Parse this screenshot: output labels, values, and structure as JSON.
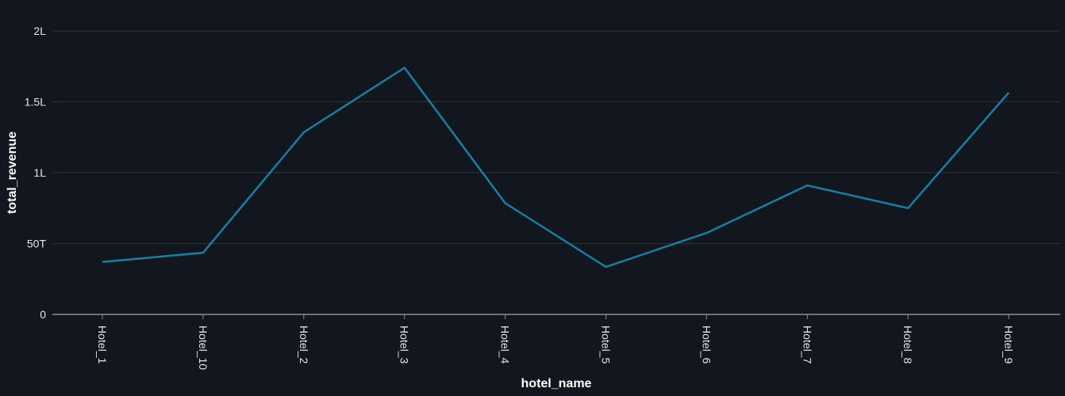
{
  "chart_data": {
    "type": "line",
    "xlabel": "hotel_name",
    "ylabel": "total_revenue",
    "categories": [
      "Hotel_1",
      "Hotel_10",
      "Hotel_2",
      "Hotel_3",
      "Hotel_4",
      "Hotel_5",
      "Hotel_6",
      "Hotel_7",
      "Hotel_8",
      "Hotel_9"
    ],
    "series": [
      {
        "values": [
          37000,
          43500,
          128500,
          174000,
          78500,
          33500,
          57500,
          91000,
          75000,
          156500
        ]
      }
    ],
    "ylim": [
      0,
      200000
    ],
    "yticks": [
      {
        "value": 0,
        "label": "0"
      },
      {
        "value": 50000,
        "label": "50T"
      },
      {
        "value": 100000,
        "label": "1L"
      },
      {
        "value": 150000,
        "label": "1.5L"
      },
      {
        "value": 200000,
        "label": "2L"
      }
    ],
    "grid": true,
    "legend": "none",
    "colors": {
      "background": "#12171e",
      "line": "#1380a6",
      "grid": "#2e3338",
      "axis": "#8a8f96",
      "text": "#e3e6ea",
      "title_text": "#ffffff"
    }
  }
}
